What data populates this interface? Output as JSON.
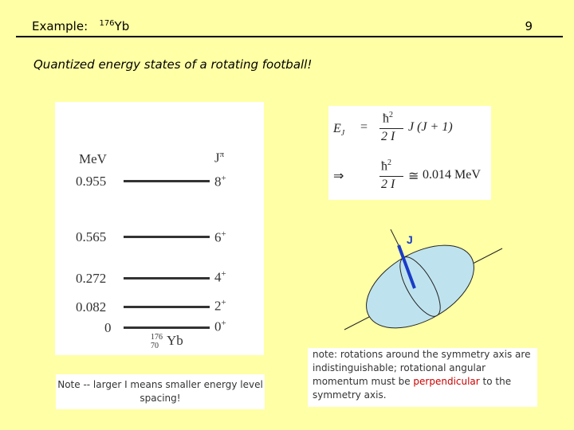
{
  "header": {
    "label": "Example:",
    "mass_number": "176",
    "element": "Yb",
    "page_number": "9"
  },
  "subtitle": "Quantized energy states of a rotating football!",
  "level_scheme": {
    "energy_unit_label": "MeV",
    "spin_parity_label": "J",
    "spin_parity_superscript": "π",
    "levels": [
      {
        "energy": "0.955",
        "spin": "8",
        "parity": "+"
      },
      {
        "energy": "0.565",
        "spin": "6",
        "parity": "+"
      },
      {
        "energy": "0.272",
        "spin": "4",
        "parity": "+"
      },
      {
        "energy": "0.082",
        "spin": "2",
        "parity": "+"
      },
      {
        "energy": "0",
        "spin": "0",
        "parity": "+"
      }
    ],
    "nucleus_mass": "176",
    "nucleus_z": "70",
    "nucleus_symbol": "Yb"
  },
  "formula": {
    "lhs_symbol": "E",
    "lhs_subscript": "J",
    "equals": "=",
    "hbar": "ħ",
    "power": "2",
    "denominator": "2 I",
    "jterm": "J (J + 1)",
    "implies": "⇒",
    "approx": "≅",
    "value": "0.014  MeV"
  },
  "diagram": {
    "j_label": "J",
    "ellipse_fill": "#BFE3EE",
    "axis_color": "#1a3cc8"
  },
  "notes": {
    "left": "Note -- larger I means smaller energy level spacing!",
    "right_start": "note:  rotations around the symmetry axis are indistinguishable;  rotational angular momentum must be ",
    "right_highlight": "perpendicular",
    "right_end": " to the symmetry axis.",
    "highlight_color": "#CC0000"
  }
}
